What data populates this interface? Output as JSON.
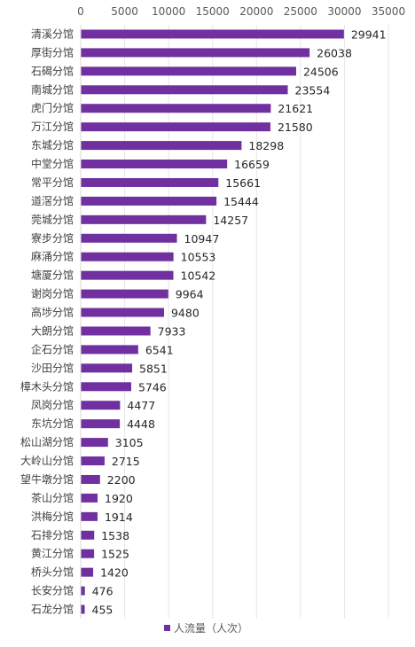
{
  "chart_data": {
    "type": "bar",
    "orientation": "horizontal",
    "categories": [
      "清溪分馆",
      "厚街分馆",
      "石碣分馆",
      "南城分馆",
      "虎门分馆",
      "万江分馆",
      "东城分馆",
      "中堂分馆",
      "常平分馆",
      "道滘分馆",
      "莞城分馆",
      "寮步分馆",
      "麻涌分馆",
      "塘厦分馆",
      "谢岗分馆",
      "高埗分馆",
      "大朗分馆",
      "企石分馆",
      "沙田分馆",
      "樟木头分馆",
      "凤岗分馆",
      "东坑分馆",
      "松山湖分馆",
      "大岭山分馆",
      "望牛墩分馆",
      "茶山分馆",
      "洪梅分馆",
      "石排分馆",
      "黄江分馆",
      "桥头分馆",
      "长安分馆",
      "石龙分馆"
    ],
    "series": [
      {
        "name": "人流量（人次）",
        "values": [
          29941,
          26038,
          24506,
          23554,
          21621,
          21580,
          18298,
          16659,
          15661,
          15444,
          14257,
          10947,
          10553,
          10542,
          9964,
          9480,
          7933,
          6541,
          5851,
          5746,
          4477,
          4448,
          3105,
          2715,
          2200,
          1920,
          1914,
          1538,
          1525,
          1420,
          476,
          455
        ]
      }
    ],
    "xticks": [
      "0",
      "5000",
      "10000",
      "15000",
      "20000",
      "25000",
      "30000",
      "35000"
    ],
    "xlim": [
      0,
      35000
    ],
    "grid": true,
    "legend_position": "bottom",
    "bar_color": "#7030A0"
  }
}
